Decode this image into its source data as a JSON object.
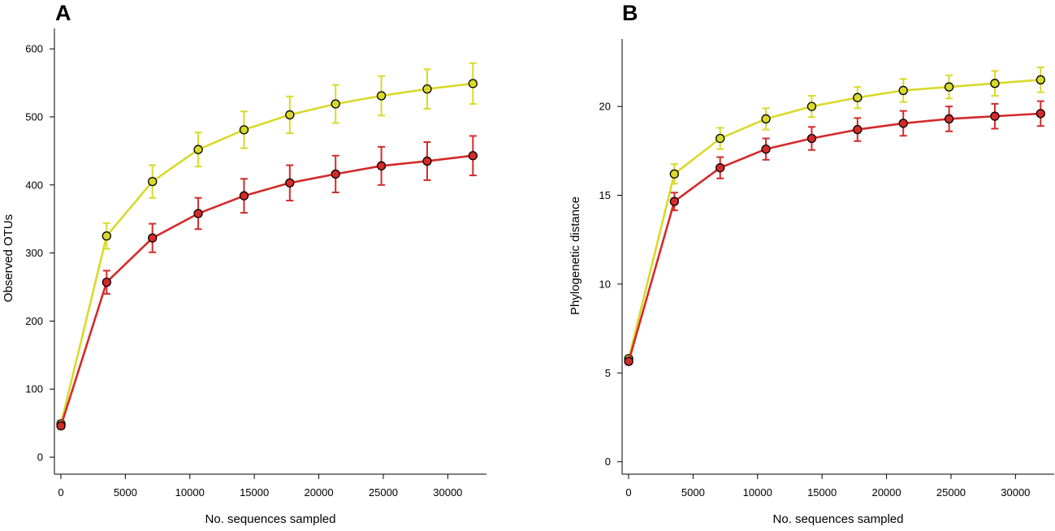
{
  "colors": {
    "series_yellow": "#d9d92a",
    "series_red": "#d42a2a",
    "axis": "#000000"
  },
  "chart_data": [
    {
      "panel": "A",
      "type": "line",
      "title": "",
      "xlabel": "No. sequences sampled",
      "ylabel": "Observed OTUs",
      "xlim": [
        -500,
        33000
      ],
      "ylim": [
        -25,
        630
      ],
      "xticks": [
        0,
        5000,
        10000,
        15000,
        20000,
        25000,
        30000
      ],
      "xtick_labels": [
        "0",
        "5000",
        "10000",
        "15000",
        "20000",
        "25000",
        "30000"
      ],
      "yticks": [
        0,
        100,
        200,
        300,
        400,
        500,
        600
      ],
      "ytick_labels": [
        "0",
        "100",
        "200",
        "300",
        "400",
        "500",
        "600"
      ],
      "x": [
        10,
        3550,
        7100,
        10650,
        14200,
        17750,
        21300,
        24850,
        28400,
        31950
      ],
      "series": [
        {
          "name": "yellow",
          "color": "#d9d92a",
          "values": [
            49,
            325,
            405,
            452,
            481,
            503,
            519,
            531,
            541,
            549
          ],
          "errors": [
            4,
            19,
            24,
            25,
            27,
            27,
            28,
            29,
            29,
            30
          ]
        },
        {
          "name": "red",
          "color": "#d42a2a",
          "values": [
            46,
            257,
            322,
            358,
            384,
            403,
            416,
            428,
            435,
            443
          ],
          "errors": [
            4,
            17,
            21,
            23,
            25,
            26,
            27,
            28,
            28,
            29
          ]
        }
      ]
    },
    {
      "panel": "B",
      "type": "line",
      "title": "",
      "xlabel": "No. sequences sampled",
      "ylabel": "Phylogenetic distance",
      "xlim": [
        -500,
        33000
      ],
      "ylim": [
        -0.7,
        23.8
      ],
      "xticks": [
        0,
        5000,
        10000,
        15000,
        20000,
        25000,
        30000
      ],
      "xtick_labels": [
        "0",
        "5000",
        "10000",
        "15000",
        "20000",
        "25000",
        "30000"
      ],
      "yticks": [
        0,
        5,
        10,
        15,
        20
      ],
      "ytick_labels": [
        "0",
        "5",
        "10",
        "15",
        "20"
      ],
      "x": [
        10,
        3550,
        7100,
        10650,
        14200,
        17750,
        21300,
        24850,
        28400,
        31950
      ],
      "series": [
        {
          "name": "yellow",
          "color": "#d9d92a",
          "values": [
            5.8,
            16.2,
            18.2,
            19.3,
            20.0,
            20.5,
            20.9,
            21.1,
            21.3,
            21.5
          ],
          "errors": [
            0.15,
            0.55,
            0.6,
            0.6,
            0.6,
            0.6,
            0.65,
            0.65,
            0.7,
            0.7
          ]
        },
        {
          "name": "red",
          "color": "#d42a2a",
          "values": [
            5.65,
            14.65,
            16.55,
            17.6,
            18.2,
            18.7,
            19.05,
            19.3,
            19.45,
            19.6
          ],
          "errors": [
            0.15,
            0.5,
            0.6,
            0.6,
            0.65,
            0.65,
            0.7,
            0.7,
            0.7,
            0.7
          ]
        }
      ]
    }
  ]
}
